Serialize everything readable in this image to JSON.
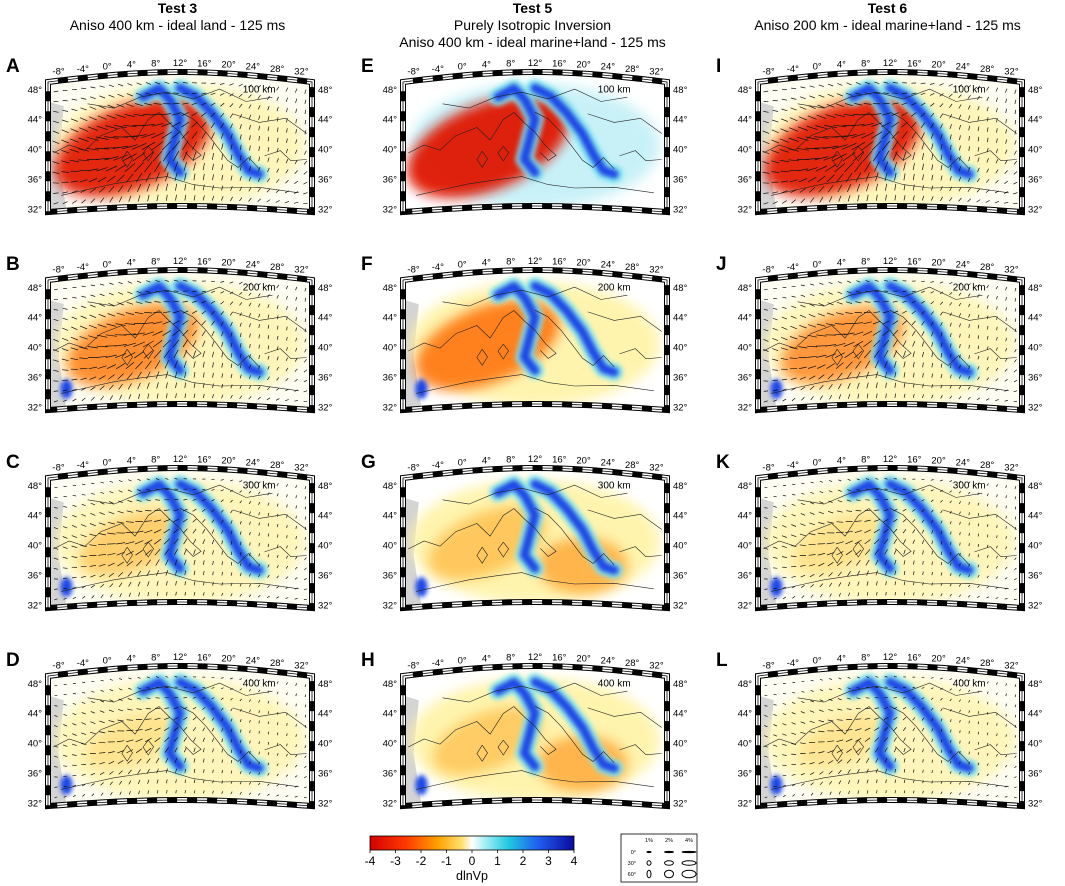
{
  "columns": [
    {
      "test": "Test 3",
      "lines": [
        "Aniso 400 km - ideal land - 125 ms"
      ]
    },
    {
      "test": "Test 5",
      "lines": [
        "Purely Isotropic Inversion",
        "Aniso 400 km - ideal marine+land - 125 ms"
      ]
    },
    {
      "test": "Test 6",
      "lines": [
        "Aniso 200 km - ideal marine+land - 125 ms"
      ]
    }
  ],
  "panels": [
    {
      "letter": "A",
      "depth": "100 km",
      "col": 0,
      "row": 0,
      "anom": 0.95,
      "arrows": 1
    },
    {
      "letter": "B",
      "depth": "200 km",
      "col": 0,
      "row": 1,
      "anom": 0.65,
      "arrows": 1
    },
    {
      "letter": "C",
      "depth": "300 km",
      "col": 0,
      "row": 2,
      "anom": 0.35,
      "arrows": 1
    },
    {
      "letter": "D",
      "depth": "400 km",
      "col": 0,
      "row": 3,
      "anom": 0.2,
      "arrows": 1
    },
    {
      "letter": "E",
      "depth": "100 km",
      "col": 1,
      "row": 0,
      "anom": 1.0,
      "arrows": 0
    },
    {
      "letter": "F",
      "depth": "200 km",
      "col": 1,
      "row": 1,
      "anom": 0.8,
      "arrows": 0
    },
    {
      "letter": "G",
      "depth": "300 km",
      "col": 1,
      "row": 2,
      "anom": 0.5,
      "arrows": 0
    },
    {
      "letter": "H",
      "depth": "400 km",
      "col": 1,
      "row": 3,
      "anom": 0.4,
      "arrows": 0
    },
    {
      "letter": "I",
      "depth": "100 km",
      "col": 2,
      "row": 0,
      "anom": 0.95,
      "arrows": 1
    },
    {
      "letter": "J",
      "depth": "200 km",
      "col": 2,
      "row": 1,
      "anom": 0.55,
      "arrows": 1
    },
    {
      "letter": "K",
      "depth": "300 km",
      "col": 2,
      "row": 2,
      "anom": 0.25,
      "arrows": 1
    },
    {
      "letter": "L",
      "depth": "400 km",
      "col": 2,
      "row": 3,
      "anom": 0.15,
      "arrows": 1
    }
  ],
  "lon_labels": [
    "-8°",
    "-4°",
    "0°",
    "4°",
    "8°",
    "12°",
    "16°",
    "20°",
    "24°",
    "28°",
    "32°"
  ],
  "lat_labels": [
    "48°",
    "44°",
    "40°",
    "36°",
    "32°"
  ],
  "colorbar": {
    "ticks": [
      "-4",
      "-3",
      "-2",
      "-1",
      "0",
      "1",
      "2",
      "3",
      "4"
    ],
    "label": "dlnVp"
  },
  "legend": {
    "amplitudes": [
      "1%",
      "2%",
      "4%"
    ],
    "angles": [
      "0°",
      "30°",
      "60°"
    ]
  }
}
